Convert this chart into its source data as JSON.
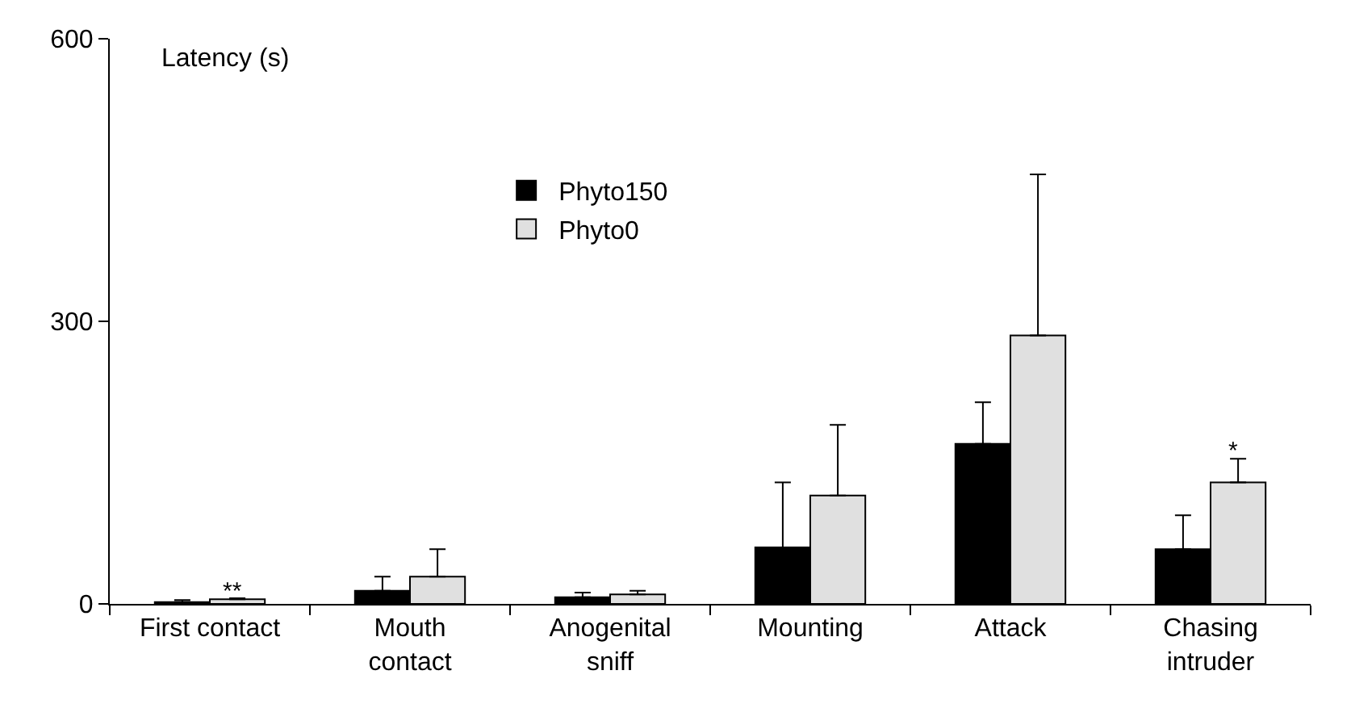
{
  "chart_data": {
    "type": "bar",
    "ylabel": "Latency (s)",
    "categories": [
      "First contact",
      "Mouth\ncontact",
      "Anogenital\nsniff",
      "Mounting",
      "Attack",
      "Chasing\nintruder"
    ],
    "series": [
      {
        "name": "Phyto150",
        "color": "#000000",
        "values": [
          2,
          14,
          7,
          60,
          170,
          58
        ],
        "errors": [
          [
            2,
            4
          ],
          [
            14,
            29
          ],
          [
            7,
            12
          ],
          [
            60,
            129
          ],
          [
            170,
            214
          ],
          [
            58,
            94
          ]
        ]
      },
      {
        "name": "Phyto0",
        "color": "#e0e0e0",
        "values": [
          5,
          29,
          10,
          115,
          285,
          129
        ],
        "errors": [
          [
            5,
            6
          ],
          [
            29,
            58
          ],
          [
            10,
            14
          ],
          [
            115,
            190
          ],
          [
            285,
            456
          ],
          [
            129,
            154
          ]
        ]
      }
    ],
    "annotations": [
      {
        "text": "**",
        "x": "First contact",
        "y": 5
      },
      {
        "text": "*",
        "x": "Chasing\nintruder",
        "y": 129
      }
    ],
    "ylim": [
      0,
      600
    ],
    "yticks": [
      0,
      300,
      600
    ],
    "legend": "top left"
  }
}
